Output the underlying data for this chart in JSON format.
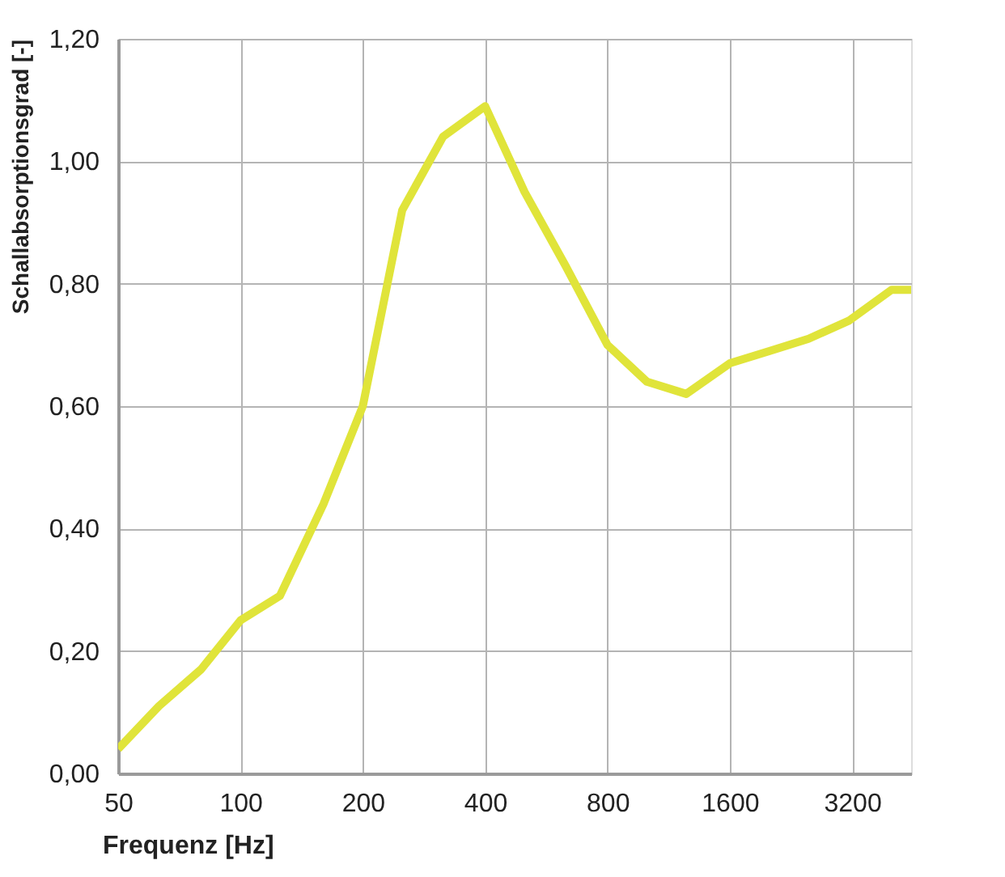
{
  "chart_data": {
    "type": "line",
    "xlabel": "Frequenz [Hz]",
    "ylabel": "Schallabsorptionsgrad [-]",
    "log": "x",
    "x": [
      50,
      63,
      80,
      100,
      125,
      160,
      200,
      250,
      315,
      400,
      500,
      630,
      800,
      1000,
      1250,
      1600,
      2000,
      2500,
      3150,
      4000,
      4470
    ],
    "series": [
      {
        "color": "#e0e43a",
        "values": [
          0.04,
          0.11,
          0.17,
          0.25,
          0.29,
          0.44,
          0.6,
          0.92,
          1.04,
          1.09,
          0.95,
          0.83,
          0.7,
          0.64,
          0.62,
          0.67,
          0.69,
          0.71,
          0.74,
          0.79,
          0.79
        ]
      }
    ],
    "xlim": [
      50,
      4470
    ],
    "xticks": [
      50,
      100,
      200,
      400,
      800,
      1600,
      3200
    ],
    "ylim": [
      0,
      1.2
    ],
    "yticks": [
      {
        "value": 0,
        "label": "0,00"
      },
      {
        "value": 0.2,
        "label": "0,20"
      },
      {
        "value": 0.4,
        "label": "0,40"
      },
      {
        "value": 0.6,
        "label": "0,60"
      },
      {
        "value": 0.8,
        "label": "0,80"
      },
      {
        "value": 1.0,
        "label": "1,00"
      },
      {
        "value": 1.2,
        "label": "1,20"
      }
    ],
    "grid": true,
    "marker": "none",
    "line_style": "solid"
  }
}
